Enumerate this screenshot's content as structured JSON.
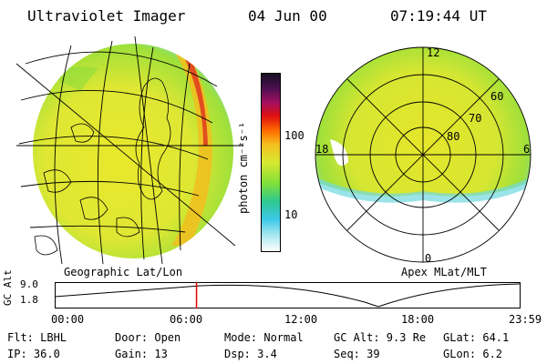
{
  "header": {
    "instrument": "Ultraviolet Imager",
    "date": "04 Jun 00",
    "time": "07:19:44 UT"
  },
  "map_left": {
    "caption": "Geographic Lat/Lon"
  },
  "map_right": {
    "caption": "Apex MLat/MLT",
    "mlt_labels": [
      "12",
      "18",
      "6",
      "0"
    ],
    "lat_labels": [
      "60",
      "70",
      "80"
    ]
  },
  "colorbar": {
    "unit_label": "photon cm⁻²s⁻¹",
    "ticks": [
      "100",
      "10"
    ]
  },
  "timeline": {
    "ylabel": "GC Alt",
    "y_ticks": [
      "9.0",
      "1.8"
    ],
    "x_ticks": [
      "00:00",
      "06:00",
      "12:00",
      "18:00",
      "23:59"
    ],
    "marker_time_fraction": 0.305
  },
  "footer": {
    "flt": "Flt: LBHL",
    "door": "Door: Open",
    "mode": "Mode: Normal",
    "gc_alt": "GC Alt: 9.3 Re",
    "glat": "GLat:  64.1",
    "ip": "IP: 36.0",
    "gain": "Gain: 13",
    "dsp": "Dsp:    3.4",
    "seq": "Seq: 39",
    "glon": "GLon:   6.2"
  },
  "colors": {
    "dominant": "#e6e62a",
    "green": "#7ee03a",
    "cyan": "#5fd6e8",
    "orange": "#f0a020",
    "red": "#d81b1b",
    "marker": "#e00000"
  }
}
